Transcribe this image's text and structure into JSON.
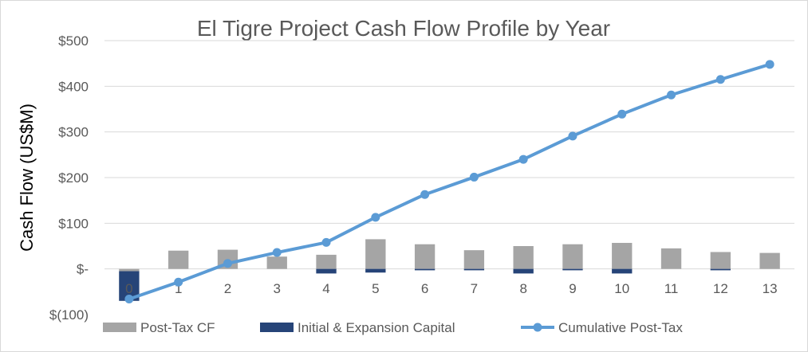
{
  "chart_data": {
    "type": "bar",
    "title": "El Tigre Project Cash Flow Profile by Year",
    "ylabel": "Cash Flow (US$M)",
    "xlabel": "",
    "ylim": [
      -100,
      500
    ],
    "yticks": [
      500,
      400,
      300,
      200,
      100,
      0,
      -100
    ],
    "ytick_labels": [
      "$500",
      "$400",
      "$300",
      "$200",
      "$100",
      "$-",
      "$(100)"
    ],
    "categories": [
      "0",
      "1",
      "2",
      "3",
      "4",
      "5",
      "6",
      "7",
      "8",
      "9",
      "10",
      "11",
      "12",
      "13"
    ],
    "grid": true,
    "legend_position": "bottom",
    "series": [
      {
        "name": "Post-Tax CF",
        "kind": "bar",
        "color": "#a5a5a5",
        "values": [
          -5,
          40,
          42,
          27,
          31,
          65,
          54,
          41,
          50,
          54,
          57,
          45,
          37,
          35
        ]
      },
      {
        "name": "Initial & Expansion Capital",
        "kind": "bar",
        "color": "#264478",
        "values": [
          -65,
          0,
          0,
          0,
          -10,
          -8,
          -3,
          -3,
          -10,
          -3,
          -10,
          0,
          -3,
          0
        ]
      },
      {
        "name": "Cumulative Post-Tax",
        "kind": "line",
        "color": "#5b9bd5",
        "values": [
          -66,
          -29,
          12,
          36,
          58,
          113,
          163,
          201,
          240,
          291,
          339,
          381,
          415,
          448
        ]
      }
    ]
  }
}
